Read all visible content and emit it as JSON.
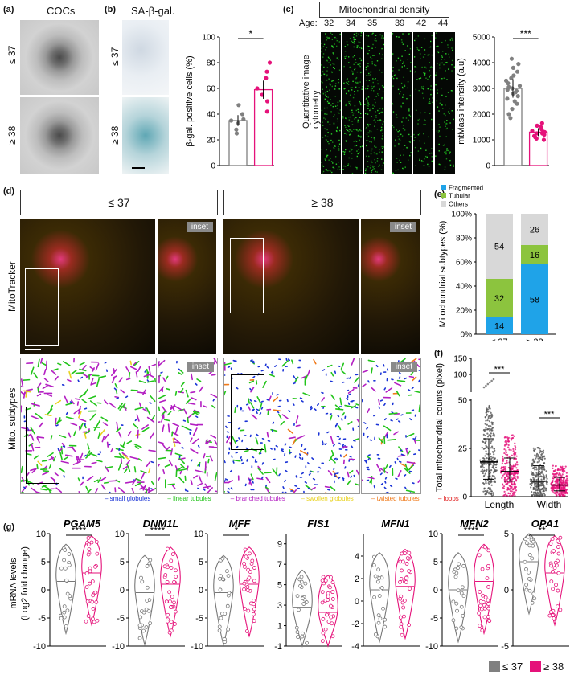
{
  "panels": {
    "a": {
      "label": "(a)",
      "title": "COCs",
      "rows": [
        "≤ 37",
        "≥ 38"
      ]
    },
    "b": {
      "label": "(b)",
      "title": "SA-β-gal.",
      "rows": [
        "≤ 37",
        "≥ 38"
      ]
    },
    "c": {
      "label": "(c)",
      "title": "Mitochondrial density",
      "age_label": "Age:",
      "ages": [
        "32",
        "34",
        "35",
        "39",
        "42",
        "44"
      ],
      "side_label": "Quantitative image cytometry"
    },
    "d": {
      "label": "(d)",
      "groups": [
        "≤ 37",
        "≥ 38"
      ],
      "row1": "MitoTracker",
      "row2": "Mito. subtypes",
      "inset": "inset",
      "legend": [
        {
          "text": "small globules",
          "color": "#1a33d6"
        },
        {
          "text": "linear tubules",
          "color": "#22c41a"
        },
        {
          "text": "branched tubules",
          "color": "#b31ec2"
        },
        {
          "text": "swollen globules",
          "color": "#e8d21e"
        },
        {
          "text": "twisted tubules",
          "color": "#f07a1a"
        },
        {
          "text": "loops",
          "color": "#e01a1a"
        }
      ]
    },
    "e": {
      "label": "(e)"
    },
    "f": {
      "label": "(f)"
    },
    "g": {
      "label": "(g)"
    }
  },
  "colors": {
    "young": "#808080",
    "old": "#e5127a",
    "fragmented": "#1fa3e8",
    "tubular": "#8cc43e",
    "others": "#d8d8d8"
  },
  "legend_bottom": {
    "young": "≤ 37",
    "old": "≥ 38"
  },
  "chart_data": [
    {
      "id": "b",
      "type": "bar",
      "categories": [
        "≤ 37",
        "≥ 38"
      ],
      "values": [
        35,
        59
      ],
      "ylabel": "β-gal. positive cells (%)",
      "ylim": [
        0,
        100
      ],
      "yticks": [
        0,
        20,
        40,
        60,
        80,
        100
      ],
      "significance": "*",
      "points": [
        [
          25,
          36,
          33,
          40,
          47,
          28,
          35
        ],
        [
          42,
          55,
          68,
          73,
          60,
          80,
          50
        ]
      ]
    },
    {
      "id": "c",
      "type": "bar",
      "categories": [
        "≤ 37",
        "≥ 38"
      ],
      "values": [
        3000,
        1300
      ],
      "ylabel": "mtMass intensity (a.u)",
      "ylim": [
        0,
        5000
      ],
      "yticks": [
        0,
        1000,
        2000,
        3000,
        4000,
        5000
      ],
      "significance": "***",
      "points": [
        [
          4150,
          3950,
          3800,
          3650,
          3500,
          3400,
          3300,
          3200,
          3100,
          3000,
          2950,
          2900,
          2800,
          2700,
          2600,
          2500,
          2400,
          2200,
          2000,
          1850,
          3050,
          2850
        ],
        [
          1650,
          1550,
          1450,
          1400,
          1350,
          1300,
          1250,
          1200,
          1150,
          1100,
          1050,
          1000,
          1500,
          1300,
          1250
        ]
      ]
    },
    {
      "id": "e",
      "type": "bar",
      "stacked": true,
      "categories": [
        "≤ 37",
        "≥ 38"
      ],
      "ylabel": "Mitochondrial subtypes (%)",
      "ylim": [
        0,
        100
      ],
      "yticks": [
        "0%",
        "20%",
        "40%",
        "60%",
        "80%",
        "100%"
      ],
      "series": [
        {
          "name": "Fragmented",
          "values": [
            14,
            58
          ]
        },
        {
          "name": "Tubular",
          "values": [
            32,
            16
          ]
        },
        {
          "name": "Others",
          "values": [
            54,
            26
          ]
        }
      ]
    },
    {
      "id": "f",
      "type": "scatter",
      "categories": [
        "Length",
        "Width"
      ],
      "ylabel": "Total mitochondrial counts (pixel)",
      "yticks": [
        "0",
        "25",
        "50",
        "100",
        "150"
      ],
      "significance": [
        "***",
        "***"
      ],
      "summary": {
        "Length": {
          "≤ 37": {
            "median": 18,
            "q1": 9,
            "q3": 30
          },
          "≥ 38": {
            "median": 13,
            "q1": 8,
            "q3": 20
          }
        },
        "Width": {
          "≤ 37": {
            "median": 8,
            "q1": 4,
            "q3": 16
          },
          "≥ 38": {
            "median": 6,
            "q1": 3,
            "q3": 10
          }
        }
      }
    },
    {
      "id": "g",
      "type": "violin",
      "ylabel": "mRNA levels (Log2 fold change)",
      "genes": [
        {
          "name": "PGAM5",
          "ylim": [
            -10,
            10
          ],
          "yticks": [
            -10,
            -5,
            0,
            5,
            10
          ],
          "sig": "****",
          "medians": [
            1.5,
            3
          ]
        },
        {
          "name": "DNM1L",
          "ylim": [
            -10,
            10
          ],
          "yticks": [
            -10,
            -5,
            0,
            5,
            10
          ],
          "sig": "****",
          "medians": [
            -0.5,
            1
          ]
        },
        {
          "name": "MFF",
          "ylim": [
            -10,
            10
          ],
          "yticks": [
            -10,
            -5,
            0,
            5,
            10
          ],
          "sig": "*",
          "medians": [
            -0.5,
            1
          ]
        },
        {
          "name": "FIS1",
          "ylim": [
            -1,
            10
          ],
          "yticks": [
            -1,
            1,
            3,
            5,
            7,
            9
          ],
          "sig": "",
          "medians": [
            2.8,
            2.3
          ]
        },
        {
          "name": "MFN1",
          "ylim": [
            -4,
            6
          ],
          "yticks": [
            -4,
            -2,
            0,
            2,
            4
          ],
          "sig": "",
          "medians": [
            1,
            1.3
          ]
        },
        {
          "name": "MFN2",
          "ylim": [
            -10,
            10
          ],
          "yticks": [
            -10,
            -5,
            0,
            5,
            10
          ],
          "sig": "****",
          "medians": [
            0,
            1.5
          ]
        },
        {
          "name": "OPA1",
          "ylim": [
            -5,
            5
          ],
          "yticks": [
            -5,
            0,
            5
          ],
          "sig": "**",
          "medians": [
            2.5,
            1.5
          ]
        }
      ]
    }
  ]
}
